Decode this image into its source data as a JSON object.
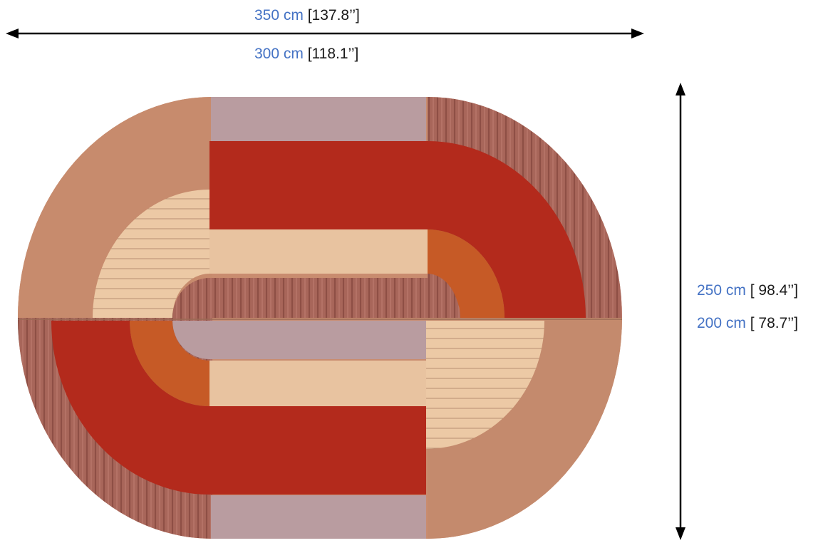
{
  "dimensions": {
    "width": {
      "outer_cm": "350 cm",
      "outer_in": "[137.8’’]",
      "inner_cm": "300 cm",
      "inner_in": "[118.1’’]"
    },
    "height": {
      "outer_cm": "250 cm",
      "outer_in": "[ 98.4’’]",
      "inner_cm": "200 cm",
      "inner_in": "[ 78.7’’]"
    }
  },
  "colors": {
    "label_accent": "#4472c4",
    "label_text": "#1a1a1a",
    "rug_salmon": "#c98c6f",
    "rug_red": "#b22a1c",
    "rug_lilac": "#b89a9f",
    "rug_beige": "#e9c7a3",
    "rug_orange": "#c85e2a",
    "rug_ribbed": "#a8665a"
  }
}
